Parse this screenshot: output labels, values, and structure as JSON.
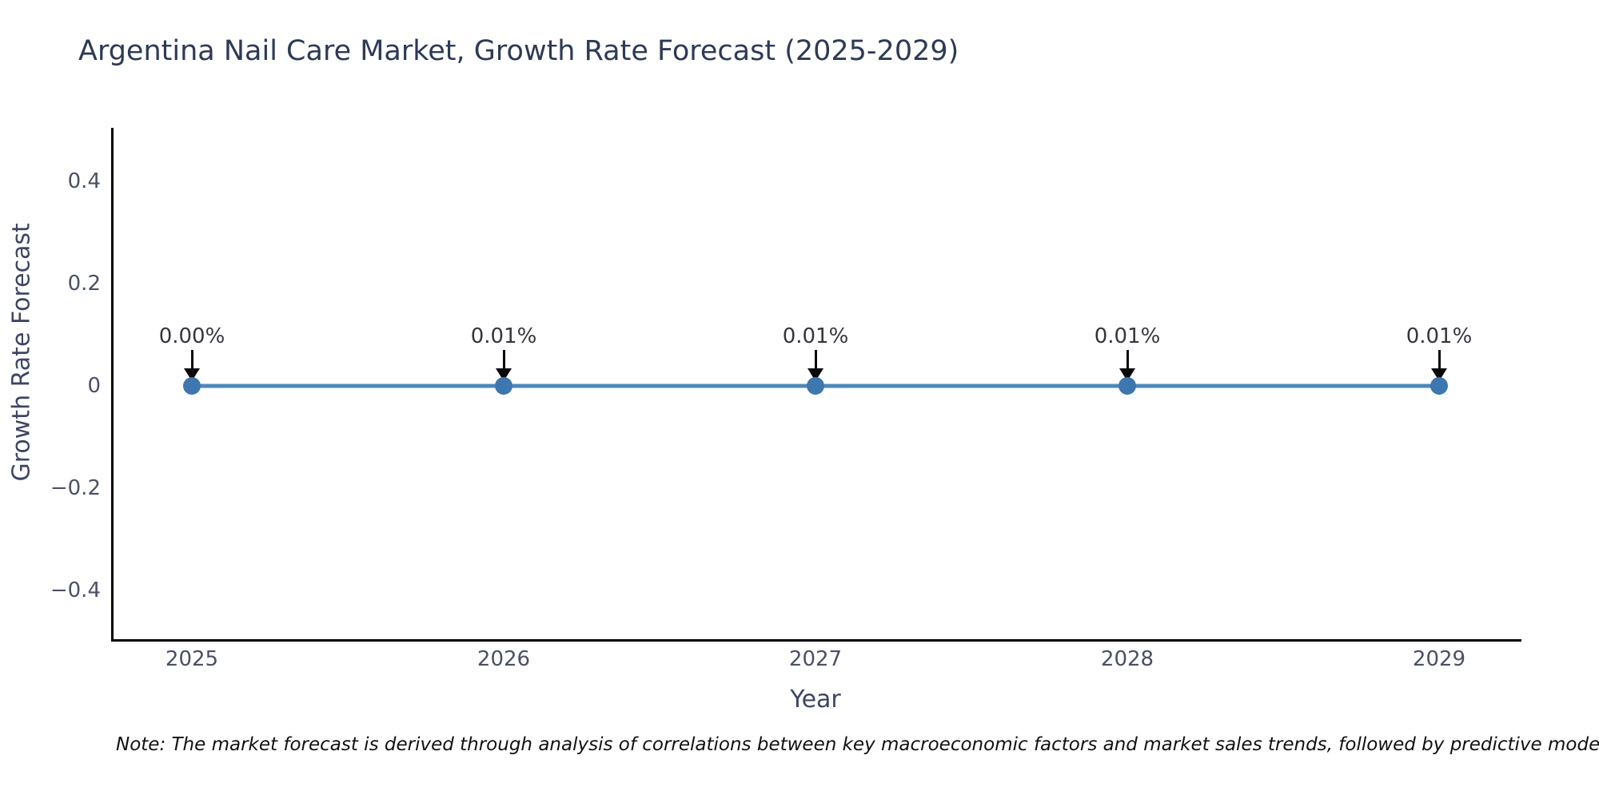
{
  "title": "Argentina Nail Care Market, Growth Rate Forecast (2025-2029)",
  "note": "Note: The market forecast is derived through analysis of correlations between key macroeconomic factors and market sales trends, followed by predictive modeling to project future sa",
  "chart_data": {
    "type": "line",
    "title": "Argentina Nail Care Market, Growth Rate Forecast (2025-2029)",
    "xlabel": "Year",
    "ylabel": "Growth Rate Forecast",
    "x": [
      2025,
      2026,
      2027,
      2028,
      2029
    ],
    "series": [
      {
        "name": "Growth Rate Forecast",
        "values": [
          0.0,
          0.0001,
          0.0001,
          0.0001,
          0.0001
        ],
        "point_labels": [
          "0.00%",
          "0.01%",
          "0.01%",
          "0.01%",
          "0.01%"
        ]
      }
    ],
    "x_tick_labels": [
      "2025",
      "2026",
      "2027",
      "2028",
      "2029"
    ],
    "y_tick_labels": [
      "0.4",
      "0.2",
      "0",
      "−0.2",
      "−0.4"
    ],
    "y_tick_values": [
      0.4,
      0.2,
      0,
      -0.2,
      -0.4
    ],
    "xlim": [
      2024.74,
      2029.26
    ],
    "ylim": [
      -0.5,
      0.5
    ],
    "grid": false,
    "legend_position": "none",
    "annotations_have_arrows": true,
    "colors": {
      "line": "#4e87bb",
      "marker": "#3e76af",
      "axis": "#000000",
      "title_text": "#2e3a55",
      "tick_text": "#4b5164",
      "annotation_text": "#33363f",
      "arrow": "#0a0a0a",
      "background": "#ffffff"
    }
  }
}
